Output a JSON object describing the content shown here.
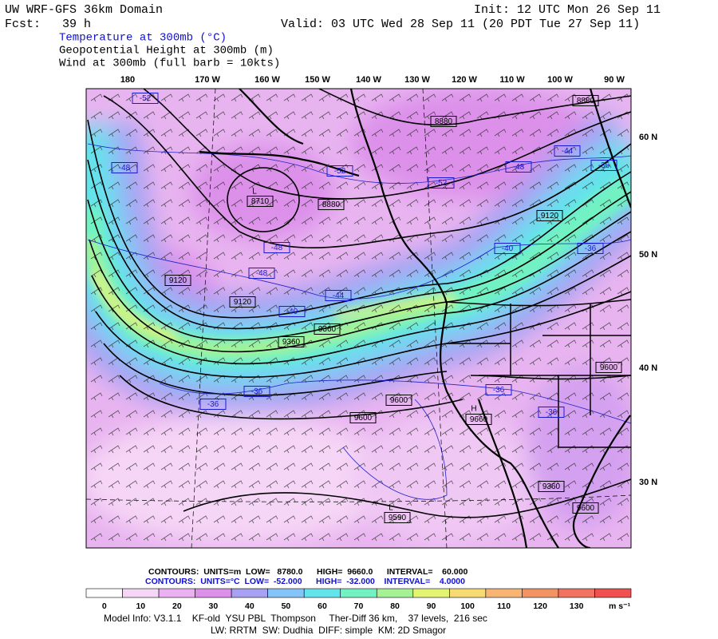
{
  "header": {
    "title": "UW WRF-GFS 36km Domain",
    "init": "Init: 12 UTC Mon 26 Sep 11",
    "forecast": "Fcst:   39 h",
    "valid": "Valid: 03 UTC Wed 28 Sep 11 (20 PDT Tue 27 Sep 11)",
    "fields": [
      "Temperature at 300mb (°C)",
      "Geopotential Height at 300mb (m)",
      "Wind at 300mb (full barb = 10kts)"
    ]
  },
  "map": {
    "longitude_labels": [
      "180",
      "170 W",
      "160 W",
      "150 W",
      "140 W",
      "130 W",
      "120 W",
      "110 W",
      "100 W",
      "90 W"
    ],
    "latitude_labels": [
      "60 N",
      "50 N",
      "40 N",
      "30 N"
    ],
    "height_labels": [
      "8880",
      "8880",
      "8710",
      "8880",
      "9120",
      "9120",
      "9120",
      "9360",
      "9360",
      "9600",
      "9600",
      "9600",
      "9660",
      "9360",
      "9600",
      "9590"
    ],
    "temperature_labels": [
      "-52",
      "-48",
      "-52",
      "-52",
      "-44",
      "-48",
      "-36",
      "-48",
      "-48",
      "-40",
      "-36",
      "-40",
      "-44",
      "-36",
      "-36",
      "-36",
      "-36"
    ],
    "center_markers": [
      "L",
      "H",
      "L"
    ]
  },
  "legend": {
    "height_contours": "CONTOURS:  UNITS=m  LOW=   8780.0      HIGH=  9660.0      INTERVAL=    60.000",
    "temperature_contours": "CONTOURS:  UNITS=°C  LOW=  -52.000      HIGH=  -32.000    INTERVAL=    4.0000",
    "colorbar": {
      "labels": [
        0,
        10,
        20,
        30,
        40,
        50,
        60,
        70,
        80,
        90,
        100,
        110,
        120,
        130
      ],
      "colors": [
        "#ffffff",
        "#f6d6f6",
        "#eab0f2",
        "#dc90ea",
        "#a8a0f2",
        "#84c4f8",
        "#62e4ea",
        "#72f2c2",
        "#a4f294",
        "#e2f472",
        "#f8da72",
        "#f8b472",
        "#f29462",
        "#f27262",
        "#f05050"
      ],
      "unit": "m s⁻¹"
    }
  },
  "footer": {
    "model_info": "Model Info: V3.1.1    KF-old  YSU PBL  Thompson     Ther-Diff 36 km,    37 levels,  216 sec",
    "physics": "LW: RRTM  SW: Dudhia  DIFF: simple  KM: 2D Smagor"
  }
}
